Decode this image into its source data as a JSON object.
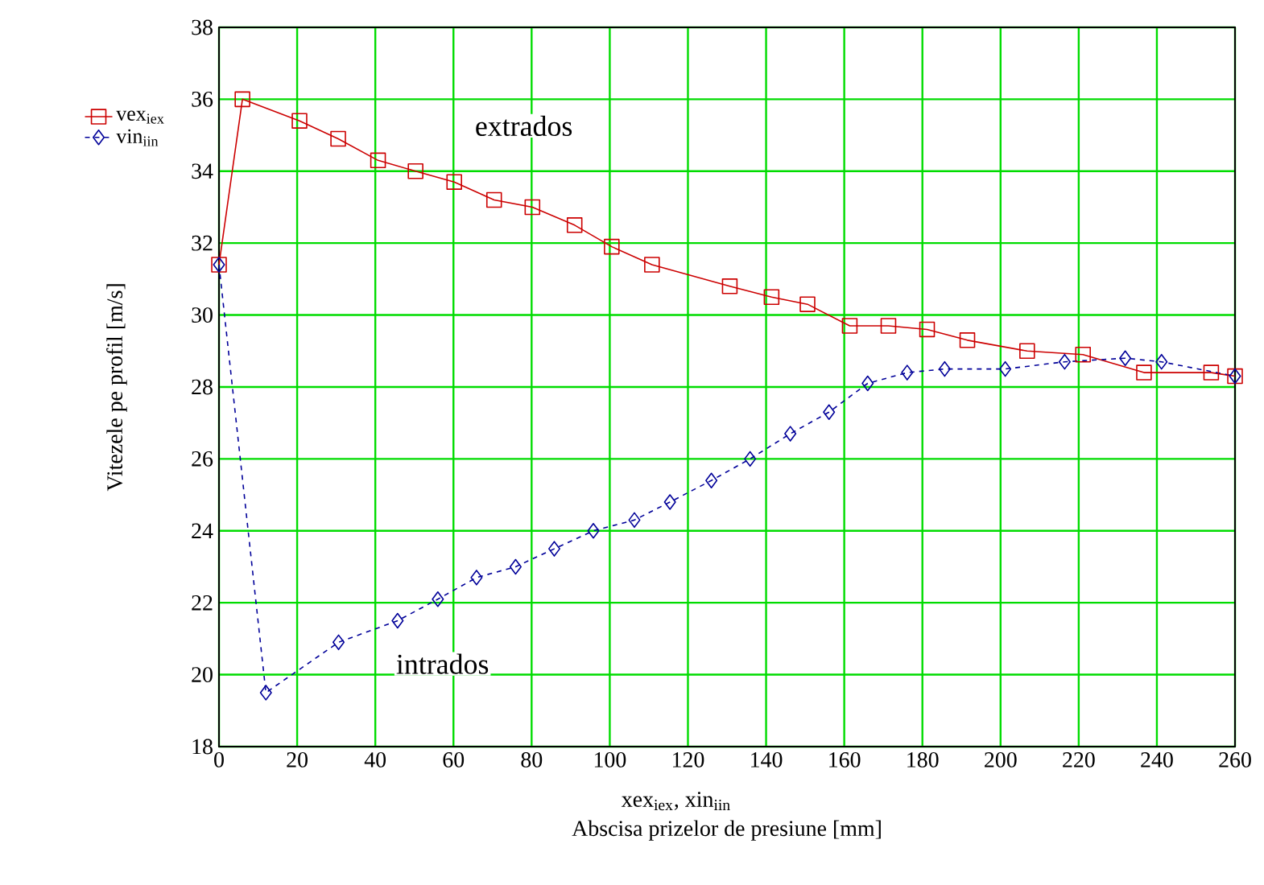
{
  "chart_data": {
    "type": "line",
    "xlabel": "Abscisa prizelor de presiune  [mm]",
    "ylabel": "Vitezele pe profil  [m/s]",
    "annotations": [
      "xex$_{iex}$, xin$_{iin}$",
      "extrados",
      "intrados"
    ],
    "series": [
      {
        "name": "vex$_{iex}$",
        "color": "#cc0000",
        "marker": "square",
        "line_style": "solid",
        "x": [
          0,
          6,
          20.6,
          30.5,
          40.7,
          50.3,
          60.2,
          70.4,
          80.2,
          91,
          100.5,
          110.8,
          130.7,
          141.4,
          150.6,
          161.4,
          171.3,
          181.2,
          191.5,
          206.8,
          221.1,
          236.7,
          253.9,
          260
        ],
        "values": [
          31.4,
          36.0,
          35.4,
          34.9,
          34.3,
          34.0,
          33.7,
          33.2,
          33.0,
          32.5,
          31.9,
          31.4,
          30.8,
          30.5,
          30.3,
          29.7,
          29.7,
          29.6,
          29.3,
          29.0,
          28.9,
          28.4,
          28.4,
          28.3
        ]
      },
      {
        "name": "vin$_{iin}$",
        "color": "#000099",
        "marker": "diamond",
        "line_style": "dashed",
        "x": [
          0,
          12,
          30.6,
          45.7,
          56,
          65.9,
          75.9,
          85.8,
          95.8,
          106.3,
          115.4,
          126,
          135.9,
          146.2,
          156.1,
          166,
          176.1,
          185.7,
          201.2,
          216.4,
          231.9,
          241.2,
          260
        ],
        "values": [
          31.4,
          19.5,
          20.9,
          21.5,
          22.1,
          22.7,
          23.0,
          23.5,
          24.0,
          24.3,
          24.8,
          25.4,
          26.0,
          26.7,
          27.3,
          28.1,
          28.4,
          28.5,
          28.5,
          28.7,
          28.8,
          28.7,
          28.3
        ]
      }
    ],
    "xlim": [
      0,
      260
    ],
    "xticks": [
      0,
      20,
      40,
      60,
      80,
      100,
      120,
      140,
      160,
      180,
      200,
      220,
      240,
      260
    ],
    "ylim": [
      18,
      38
    ],
    "yticks": [
      18,
      20,
      22,
      24,
      26,
      28,
      30,
      32,
      34,
      36,
      38
    ],
    "grid": true,
    "legend": "left"
  }
}
